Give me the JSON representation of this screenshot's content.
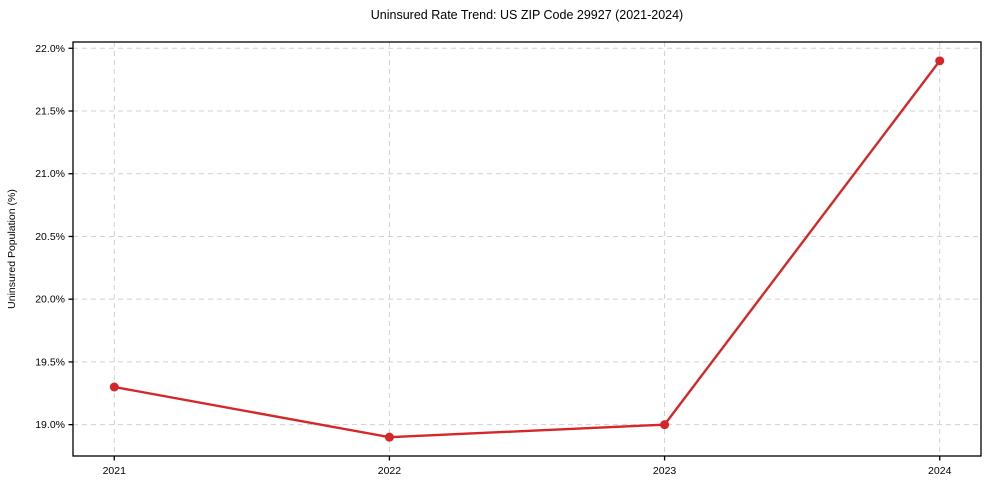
{
  "title": "Uninsured Rate Trend: US ZIP Code 29927 (2021-2024)",
  "chart_data": {
    "type": "line",
    "title": "Uninsured Rate Trend: US ZIP Code 29927 (2021-2024)",
    "xlabel": "",
    "ylabel": "Uninsured Population (%)",
    "x": [
      2021,
      2022,
      2023,
      2024
    ],
    "series": [
      {
        "name": "Uninsured Population (%)",
        "values": [
          19.3,
          18.9,
          19.0,
          21.9
        ]
      }
    ],
    "xlim": [
      2020.85,
      2024.15
    ],
    "ylim": [
      18.75,
      22.05
    ],
    "x_ticks": [
      2021,
      2022,
      2023,
      2024
    ],
    "x_tick_labels": [
      "2021",
      "2022",
      "2023",
      "2024"
    ],
    "y_ticks": [
      19.0,
      19.5,
      20.0,
      20.5,
      21.0,
      21.5,
      22.0
    ],
    "y_tick_labels": [
      "19.0%",
      "19.5%",
      "20.0%",
      "20.5%",
      "21.0%",
      "21.5%",
      "22.0%"
    ],
    "grid": true,
    "grid_style": "dashed",
    "legend": false,
    "marker": "circle"
  },
  "colors": {
    "line": "#d62728",
    "marker": "#d62728",
    "grid": "#d0d0d0",
    "axis": "#000000",
    "text": "#000000",
    "background": "#ffffff"
  }
}
